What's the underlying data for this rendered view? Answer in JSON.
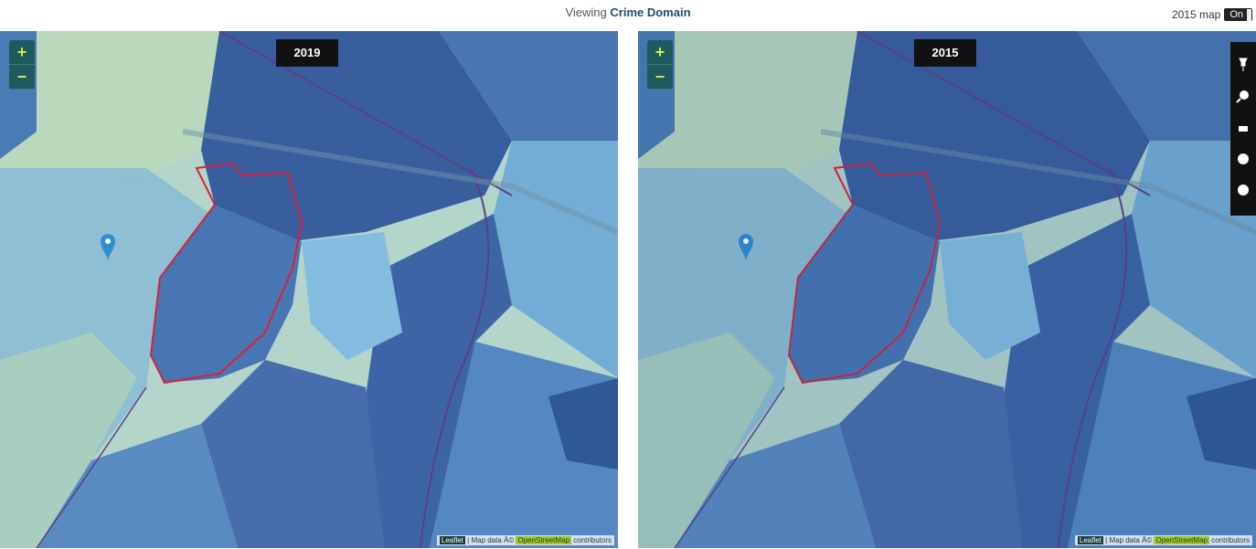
{
  "header": {
    "prefix": "Viewing",
    "domain": "Crime Domain",
    "toggle_label": "2015 map",
    "toggle_state": "On"
  },
  "maps": [
    {
      "year": "2019",
      "zoom_in": "+",
      "zoom_out": "−",
      "attribution": {
        "leaflet": "Leaflet",
        "map_data": "| Map data Â©",
        "osm": "OpenStreetMap",
        "contributors": "contributors"
      }
    },
    {
      "year": "2015",
      "zoom_in": "+",
      "zoom_out": "−",
      "attribution": {
        "leaflet": "Leaflet",
        "map_data": "| Map data Â©",
        "osm": "OpenStreetMap",
        "contributors": "contributors"
      }
    }
  ]
}
